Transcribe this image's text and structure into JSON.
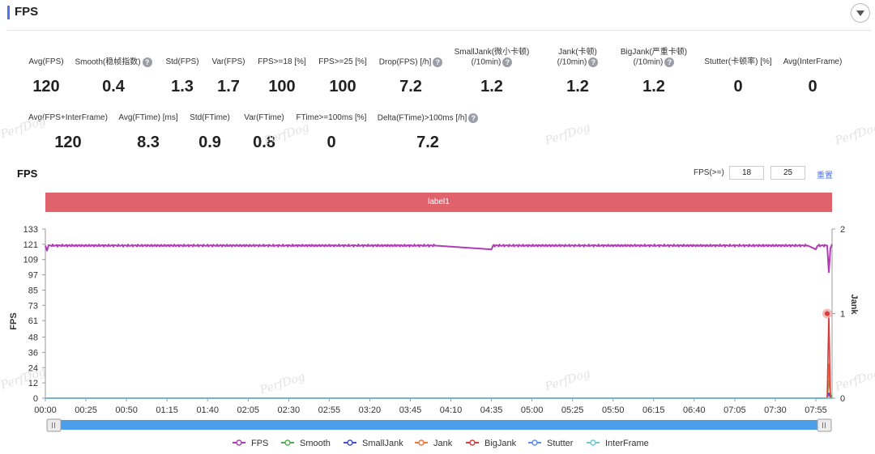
{
  "header": {
    "title": "FPS"
  },
  "metrics_row1": [
    {
      "label": "Avg(FPS)",
      "value": "120",
      "help": false
    },
    {
      "label": "Smooth(稳帧指数)",
      "value": "0.4",
      "help": true
    },
    {
      "label": "Std(FPS)",
      "value": "1.3",
      "help": false
    },
    {
      "label": "Var(FPS)",
      "value": "1.7",
      "help": false
    },
    {
      "label": "FPS>=18 [%]",
      "value": "100",
      "help": false
    },
    {
      "label": "FPS>=25 [%]",
      "value": "100",
      "help": false
    },
    {
      "label": "Drop(FPS) [/h]",
      "value": "7.2",
      "help": true
    },
    {
      "label": "SmallJank(微小卡顿)",
      "label2": "(/10min)",
      "value": "1.2",
      "help": true
    },
    {
      "label": "Jank(卡顿)",
      "label2": "(/10min)",
      "value": "1.2",
      "help": true
    },
    {
      "label": "BigJank(严重卡顿)",
      "label2": "(/10min)",
      "value": "1.2",
      "help": true
    },
    {
      "label": "Stutter(卡顿率) [%]",
      "value": "0",
      "help": false
    },
    {
      "label": "Avg(InterFrame)",
      "value": "0",
      "help": false
    }
  ],
  "metrics_row2": [
    {
      "label": "Avg(FPS+InterFrame)",
      "value": "120",
      "help": false
    },
    {
      "label": "Avg(FTime) [ms]",
      "value": "8.3",
      "help": false
    },
    {
      "label": "Std(FTime)",
      "value": "0.9",
      "help": false
    },
    {
      "label": "Var(FTime)",
      "value": "0.8",
      "help": false
    },
    {
      "label": "FTime>=100ms [%]",
      "value": "0",
      "help": false
    },
    {
      "label": "Delta(FTime)>100ms [/h]",
      "value": "7.2",
      "help": true
    }
  ],
  "watermark": "PerfDog",
  "chart_section": {
    "title": "FPS",
    "filter_label": "FPS(>=)",
    "filter_value_1": "18",
    "filter_value_2": "25",
    "reset_label": "重置",
    "label_bar": "label1"
  },
  "chart_data": {
    "type": "line",
    "ylabel": "FPS",
    "y2label": "Jank",
    "ylim": [
      0,
      133
    ],
    "y_ticks": [
      "0",
      "12",
      "24",
      "36",
      "48",
      "61",
      "73",
      "85",
      "97",
      "109",
      "121",
      "133"
    ],
    "y2lim": [
      0,
      2
    ],
    "y2_ticks": [
      "0",
      "1",
      "2"
    ],
    "xlim": [
      0,
      485
    ],
    "x_ticks": [
      "00:00",
      "00:25",
      "00:50",
      "01:15",
      "01:40",
      "02:05",
      "02:30",
      "02:55",
      "03:20",
      "03:45",
      "04:10",
      "04:35",
      "05:00",
      "05:25",
      "05:50",
      "06:15",
      "06:40",
      "07:05",
      "07:30",
      "07:55"
    ],
    "x_tick_seconds": [
      0,
      25,
      50,
      75,
      100,
      125,
      150,
      175,
      200,
      225,
      250,
      275,
      300,
      325,
      350,
      375,
      400,
      425,
      450,
      475
    ],
    "series": [
      {
        "name": "FPS",
        "color": "#b03db5",
        "axis": "left",
        "points": [
          [
            0,
            120
          ],
          [
            1,
            116
          ],
          [
            2,
            120
          ],
          [
            10,
            120
          ],
          [
            60,
            120
          ],
          [
            120,
            120
          ],
          [
            180,
            120
          ],
          [
            240,
            120
          ],
          [
            275,
            117
          ],
          [
            276,
            120
          ],
          [
            330,
            120
          ],
          [
            390,
            120
          ],
          [
            440,
            120
          ],
          [
            470,
            120
          ],
          [
            475,
            117
          ],
          [
            476,
            120
          ],
          [
            482,
            120
          ],
          [
            483,
            99
          ],
          [
            484,
            118
          ],
          [
            485,
            121
          ]
        ]
      },
      {
        "name": "Smooth",
        "color": "#4caf50",
        "axis": "left",
        "points": [
          [
            0,
            0
          ],
          [
            482,
            0
          ],
          [
            483,
            14
          ],
          [
            484,
            3
          ],
          [
            485,
            0
          ]
        ]
      },
      {
        "name": "SmallJank",
        "color": "#3f4ed6",
        "axis": "right",
        "points": [
          [
            0,
            0
          ],
          [
            482,
            0
          ],
          [
            483,
            0.06
          ],
          [
            484,
            0
          ],
          [
            485,
            0
          ]
        ]
      },
      {
        "name": "Jank",
        "color": "#f0763a",
        "axis": "right",
        "points": [
          [
            0,
            0
          ],
          [
            482,
            0
          ],
          [
            483,
            0.4
          ],
          [
            484,
            0
          ],
          [
            485,
            0
          ]
        ]
      },
      {
        "name": "BigJank",
        "color": "#d93a3a",
        "axis": "right",
        "points": [
          [
            0,
            0
          ],
          [
            482,
            0
          ],
          [
            483,
            1
          ],
          [
            484,
            0
          ],
          [
            485,
            0
          ]
        ]
      },
      {
        "name": "Stutter",
        "color": "#5b8ff0",
        "axis": "right",
        "points": [
          [
            0,
            0
          ],
          [
            485,
            0
          ]
        ]
      },
      {
        "name": "InterFrame",
        "color": "#6cc9de",
        "axis": "right",
        "points": [
          [
            0,
            0
          ],
          [
            485,
            0
          ]
        ]
      }
    ],
    "highlight_point": {
      "series": "BigJank",
      "x": 483,
      "y": 1
    },
    "grid": false,
    "legend_position": "bottom"
  }
}
